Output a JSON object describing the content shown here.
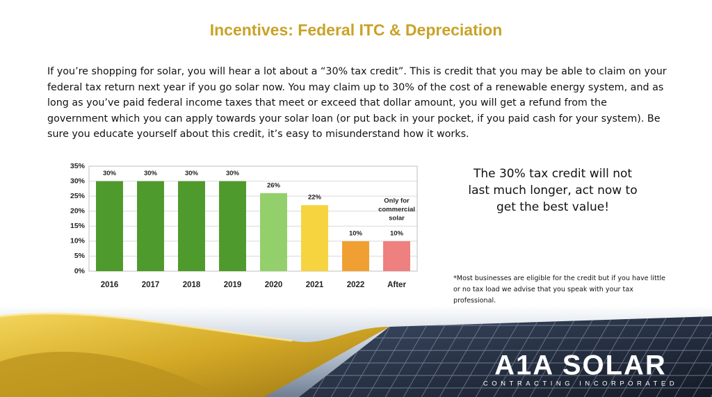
{
  "title": "Incentives: Federal ITC & Depreciation",
  "intro": "If you’re shopping for solar, you will hear a lot about a “30% tax credit”. This is credit that you may be able to claim on your federal tax return next year if you go solar now. You may claim up to 30% of the cost of a renewable energy system, and as long as you’ve paid federal income taxes that meet or exceed that dollar amount, you will get a refund from the government which you can apply towards your solar loan (or put back in your pocket, if you paid cash for your system). Be sure you educate yourself about this credit, it’s easy to misunderstand how it works.",
  "callout": "The 30% tax credit will not last much longer, act now to get the best value!",
  "footnote": "*Most businesses are eligible for the credit but if you have little or no tax load we advise that you speak with your tax professional.",
  "logo": {
    "name": "A1A SOLAR",
    "tagline": "CONTRACTING INCORPORATED"
  },
  "chart_data": {
    "type": "bar",
    "categories": [
      "2016",
      "2017",
      "2018",
      "2019",
      "2020",
      "2021",
      "2022",
      "After"
    ],
    "values": [
      30,
      30,
      30,
      30,
      26,
      22,
      10,
      10
    ],
    "value_labels": [
      "30%",
      "30%",
      "30%",
      "30%",
      "26%",
      "22%",
      "10%",
      "10%"
    ],
    "colors": [
      "#4f9a2c",
      "#4f9a2c",
      "#4f9a2c",
      "#4f9a2c",
      "#93cf6b",
      "#f6d43f",
      "#f0a032",
      "#ee8080"
    ],
    "annotation": [
      "Only for",
      "commercial",
      "solar"
    ],
    "ylim": [
      0,
      35
    ],
    "yticks": [
      {
        "value": 0,
        "label": "0%"
      },
      {
        "value": 5,
        "label": "5%"
      },
      {
        "value": 10,
        "label": "10%"
      },
      {
        "value": 15,
        "label": "15%"
      },
      {
        "value": 20,
        "label": "20%"
      },
      {
        "value": 25,
        "label": "25%"
      },
      {
        "value": 30,
        "label": "30%"
      },
      {
        "value": 35,
        "label": "35%"
      }
    ],
    "grid": true
  }
}
